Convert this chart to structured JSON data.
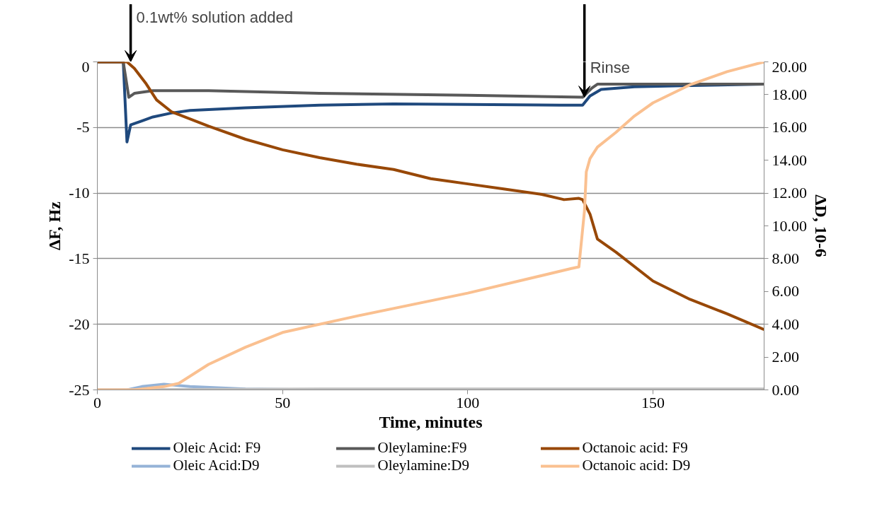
{
  "chart_data": {
    "type": "line",
    "xlabel": "Time, minutes",
    "ylabel": "ΔF, Hz",
    "y2label": "ΔD, 10-6",
    "xlim": [
      0,
      180
    ],
    "xticks": [
      0,
      50,
      100,
      150
    ],
    "ylim": [
      -25,
      0
    ],
    "yticks": [
      -25,
      -20,
      -15,
      -10,
      -5,
      0
    ],
    "y2lim": [
      0,
      20
    ],
    "y2ticks": [
      {
        "value": 0,
        "label": "0.00"
      },
      {
        "value": 2,
        "label": "2.00"
      },
      {
        "value": 4,
        "label": "4.00"
      },
      {
        "value": 6,
        "label": "6.00"
      },
      {
        "value": 8,
        "label": "8.00"
      },
      {
        "value": 10,
        "label": "10.00"
      },
      {
        "value": 12,
        "label": "12.00"
      },
      {
        "value": 14,
        "label": "14.00"
      },
      {
        "value": 16,
        "label": "16.00"
      },
      {
        "value": 18,
        "label": "18.00"
      },
      {
        "value": 20,
        "label": "20.00"
      }
    ],
    "grid": "y",
    "legend": "bottom",
    "marker": "none",
    "line_style": "solid",
    "annotations": [
      {
        "text": "0.1wt% solution added",
        "x": 9,
        "y": 0
      },
      {
        "text": "Rinse",
        "x": 131.5,
        "y": -2.7
      }
    ],
    "series": [
      {
        "name": "Oleic Acid: F9",
        "color": "#1f497d",
        "x": [
          0,
          7,
          8,
          9,
          12,
          15,
          20,
          25,
          40,
          60,
          80,
          100,
          125,
          131,
          133,
          136,
          145,
          160,
          180
        ],
        "values": [
          0,
          0,
          -6.1,
          -4.8,
          -4.5,
          -4.2,
          -3.9,
          -3.7,
          -3.5,
          -3.3,
          -3.2,
          -3.25,
          -3.3,
          -3.3,
          -2.6,
          -2.1,
          -1.9,
          -1.8,
          -1.7
        ]
      },
      {
        "name": "Oleylamine:F9",
        "color": "#595959",
        "x": [
          0,
          7,
          8.5,
          10,
          15,
          30,
          60,
          100,
          131,
          133.5,
          135,
          160,
          180
        ],
        "values": [
          0,
          0,
          -2.7,
          -2.4,
          -2.2,
          -2.2,
          -2.4,
          -2.55,
          -2.7,
          -2.0,
          -1.7,
          -1.7,
          -1.7
        ]
      },
      {
        "name": "Octanoic acid: F9",
        "color": "#984807",
        "x": [
          0,
          8,
          10,
          13,
          16,
          20,
          30,
          40,
          50,
          60,
          70,
          80,
          90,
          100,
          110,
          120,
          126,
          130,
          131,
          133,
          135,
          140,
          150,
          160,
          170,
          180
        ],
        "values": [
          0,
          0,
          -0.5,
          -1.6,
          -2.9,
          -3.8,
          -4.9,
          -5.9,
          -6.7,
          -7.3,
          -7.8,
          -8.2,
          -8.9,
          -9.3,
          -9.7,
          -10.1,
          -10.5,
          -10.4,
          -10.5,
          -11.6,
          -13.5,
          -14.5,
          -16.7,
          -18.1,
          -19.2,
          -20.4
        ]
      },
      {
        "name": "Oleic Acid:D9",
        "color": "#95b3d7",
        "axis": "y2",
        "x": [
          0,
          8,
          12,
          18,
          25,
          40,
          60,
          180
        ],
        "values": [
          0,
          0,
          0.2,
          0.35,
          0.2,
          0.05,
          0,
          0
        ]
      },
      {
        "name": "Oleylamine:D9",
        "color": "#bfbfbf",
        "axis": "y2",
        "x": [
          0,
          60,
          120,
          180
        ],
        "values": [
          0,
          0.05,
          0.05,
          0.05
        ]
      },
      {
        "name": "Octanoic acid: D9",
        "color": "#fac090",
        "axis": "y2",
        "x": [
          0,
          10,
          18,
          22,
          30,
          40,
          50,
          70,
          100,
          128,
          130,
          131.5,
          132,
          133,
          135,
          140,
          145,
          150,
          160,
          170,
          180
        ],
        "values": [
          0,
          0,
          0.2,
          0.4,
          1.55,
          2.6,
          3.5,
          4.5,
          5.9,
          7.4,
          7.5,
          10.9,
          13.3,
          14.1,
          14.8,
          15.7,
          16.7,
          17.5,
          18.6,
          19.4,
          20
        ]
      }
    ]
  }
}
